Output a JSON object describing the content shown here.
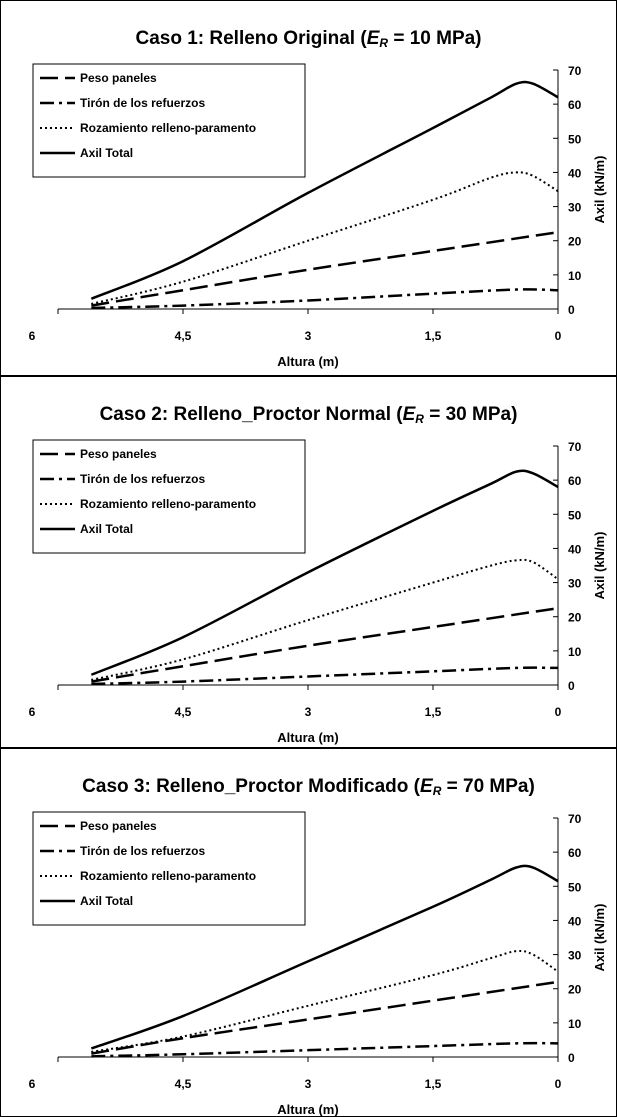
{
  "chart_data": [
    {
      "type": "line",
      "title": {
        "prefix": "Caso 1: Relleno Original (",
        "symbol": "E",
        "subscript": "R",
        "suffix": " = 10 MPa)"
      },
      "xlabel": "Altura (m)",
      "ylabel": "Axil (kN/m)",
      "xlim": [
        6,
        0
      ],
      "ylim": [
        0,
        70
      ],
      "x_ticks": [
        "6",
        "4,5",
        "3",
        "1,5",
        "0"
      ],
      "y_ticks": [
        "0",
        "10",
        "20",
        "30",
        "40",
        "50",
        "60",
        "70"
      ],
      "legend_position": "top-left",
      "series": [
        {
          "name": "Peso paneles",
          "style": "long-dash",
          "x": [
            5.6,
            4.5,
            3,
            1.5,
            0
          ],
          "values": [
            1,
            5.5,
            11.5,
            17,
            22.5
          ]
        },
        {
          "name": "Tirón de los refuerzos",
          "style": "dash-dot",
          "x": [
            5.6,
            4.5,
            3,
            1.5,
            0.5,
            0
          ],
          "values": [
            0.3,
            1,
            2.5,
            4.5,
            5.7,
            5.5
          ]
        },
        {
          "name": "Rozamiento relleno-paramento",
          "style": "dotted",
          "x": [
            5.6,
            4.5,
            3,
            1.5,
            0.8,
            0.5,
            0.3,
            0
          ],
          "values": [
            1.5,
            8,
            20,
            32,
            38.5,
            40,
            39,
            34.5
          ]
        },
        {
          "name": "Axil Total",
          "style": "solid",
          "x": [
            5.6,
            4.5,
            3,
            1.5,
            0.8,
            0.5,
            0.3,
            0
          ],
          "values": [
            3,
            14,
            34,
            53,
            62,
            66,
            66,
            62
          ]
        }
      ]
    },
    {
      "type": "line",
      "title": {
        "prefix": "Caso 2: Relleno_Proctor Normal (",
        "symbol": "E",
        "subscript": "R",
        "suffix": " = 30 MPa)"
      },
      "xlabel": "Altura (m)",
      "ylabel": "Axil (kN/m)",
      "xlim": [
        6,
        0
      ],
      "ylim": [
        0,
        70
      ],
      "x_ticks": [
        "6",
        "4,5",
        "3",
        "1,5",
        "0"
      ],
      "y_ticks": [
        "0",
        "10",
        "20",
        "30",
        "40",
        "50",
        "60",
        "70"
      ],
      "legend_position": "top-left",
      "series": [
        {
          "name": "Peso paneles",
          "style": "long-dash",
          "x": [
            5.6,
            4.5,
            3,
            1.5,
            0
          ],
          "values": [
            1,
            5.5,
            11.5,
            17,
            22.5
          ]
        },
        {
          "name": "Tirón de los refuerzos",
          "style": "dash-dot",
          "x": [
            5.6,
            4.5,
            3,
            1.5,
            0.5,
            0
          ],
          "values": [
            0.3,
            1,
            2.5,
            4,
            5,
            5
          ]
        },
        {
          "name": "Rozamiento relleno-paramento",
          "style": "dotted",
          "x": [
            5.6,
            4.5,
            3,
            1.5,
            0.8,
            0.5,
            0.3,
            0
          ],
          "values": [
            1.5,
            7.5,
            19,
            30,
            35,
            36.5,
            36,
            31
          ]
        },
        {
          "name": "Axil Total",
          "style": "solid",
          "x": [
            5.6,
            4.5,
            3,
            1.5,
            0.8,
            0.5,
            0.3,
            0
          ],
          "values": [
            3,
            14,
            33,
            51,
            59,
            62.5,
            62,
            58
          ]
        }
      ]
    },
    {
      "type": "line",
      "title": {
        "prefix": "Caso 3: Relleno_Proctor Modificado (",
        "symbol": "E",
        "subscript": "R",
        "suffix": " = 70 MPa)"
      },
      "xlabel": "Altura (m)",
      "ylabel": "Axil (kN/m)",
      "xlim": [
        6,
        0
      ],
      "ylim": [
        0,
        70
      ],
      "x_ticks": [
        "6",
        "4,5",
        "3",
        "1,5",
        "0"
      ],
      "y_ticks": [
        "0",
        "10",
        "20",
        "30",
        "40",
        "50",
        "60",
        "70"
      ],
      "legend_position": "top-left",
      "series": [
        {
          "name": "Peso paneles",
          "style": "long-dash",
          "x": [
            5.6,
            4.5,
            3,
            1.5,
            0
          ],
          "values": [
            1,
            5.5,
            11,
            16.5,
            22
          ]
        },
        {
          "name": "Tirón de los refuerzos",
          "style": "dash-dot",
          "x": [
            5.6,
            4.5,
            3,
            1.5,
            0.5,
            0
          ],
          "values": [
            0.2,
            0.8,
            2,
            3.2,
            4,
            4
          ]
        },
        {
          "name": "Rozamiento relleno-paramento",
          "style": "dotted",
          "x": [
            5.6,
            4.5,
            3,
            1.5,
            0.8,
            0.5,
            0.3,
            0
          ],
          "values": [
            1.5,
            6,
            15,
            24,
            29,
            31,
            30,
            25
          ]
        },
        {
          "name": "Axil Total",
          "style": "solid",
          "x": [
            5.6,
            4.5,
            3,
            1.5,
            0.8,
            0.5,
            0.3,
            0
          ],
          "values": [
            2.5,
            12,
            28,
            44,
            52,
            55.5,
            55.5,
            51.5
          ]
        }
      ]
    }
  ]
}
